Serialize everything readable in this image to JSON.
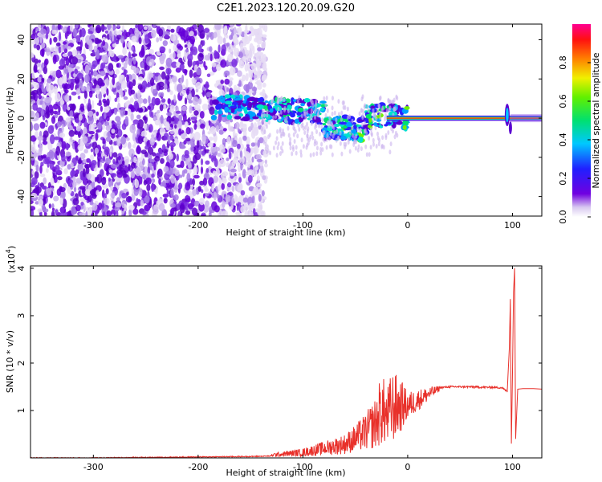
{
  "figure": {
    "title": "C2E1.2023.120.20.09.G20"
  },
  "colors": {
    "spectrum_purple": "#6a00e0",
    "snr_line": "#e8302a",
    "axis": "#000000"
  },
  "chart_data": [
    {
      "type": "heatmap",
      "name": "spectrogram",
      "xlabel": "Height of straight line (km)",
      "ylabel": "Frequency (Hz)",
      "xlim": [
        -360,
        128
      ],
      "ylim": [
        -50,
        48
      ],
      "xticks": [
        -300,
        -200,
        -100,
        0,
        100
      ],
      "xtick_labels": [
        "-300",
        "-200",
        "-100",
        "0",
        "100"
      ],
      "yticks": [
        -40,
        -20,
        0,
        20,
        40
      ],
      "ytick_labels": [
        "-40",
        "-20",
        "0",
        "20",
        "40"
      ],
      "colorbar": {
        "label": "Normalized spectral amplitude",
        "range": [
          0,
          1
        ],
        "ticks": [
          0.0,
          0.2,
          0.4,
          0.6,
          0.8
        ],
        "tick_labels": [
          "0.0",
          "0.2",
          "0.4",
          "0.6",
          "0.8"
        ],
        "colormap": "rainbow (purple-blue-cyan-green-yellow-red-magenta)"
      },
      "features": {
        "noise_region_x": [
          -360,
          -145
        ],
        "carrier_line_frequency": 0,
        "carrier_line_x": [
          0,
          128
        ],
        "spike_x": 95
      }
    },
    {
      "type": "line",
      "name": "snr",
      "xlabel": "Height of straight line (km)",
      "ylabel": "SNR (10 * v/v)",
      "y_multiplier_label": "(x10",
      "y_multiplier_exp": "4",
      "y_multiplier_close": ")",
      "xlim": [
        -360,
        128
      ],
      "ylim": [
        0,
        4.05
      ],
      "xticks": [
        -300,
        -200,
        -100,
        0,
        100
      ],
      "xtick_labels": [
        "-300",
        "-200",
        "-100",
        "0",
        "100"
      ],
      "yticks": [
        1,
        2,
        3,
        4
      ],
      "ytick_labels": [
        "1",
        "2",
        "3",
        "4"
      ],
      "series": [
        {
          "x": [
            -360,
            -300,
            -250,
            -200,
            -150,
            -130,
            -110,
            -100,
            -90,
            -80,
            -70,
            -60,
            -50,
            -40,
            -30,
            -20,
            -10,
            0,
            10,
            20,
            30,
            40,
            50,
            60,
            70,
            80,
            90,
            95,
            97,
            98,
            99,
            100,
            101,
            102,
            103,
            105,
            110,
            120,
            128
          ],
          "y": [
            0.0,
            0.0,
            0.01,
            0.02,
            0.03,
            0.04,
            0.06,
            0.09,
            0.12,
            0.16,
            0.22,
            0.3,
            0.38,
            0.5,
            0.62,
            0.8,
            0.95,
            1.1,
            1.25,
            1.38,
            1.48,
            1.5,
            1.5,
            1.5,
            1.49,
            1.49,
            1.48,
            1.4,
            2.3,
            3.35,
            0.3,
            1.8,
            3.5,
            4.0,
            0.4,
            1.45,
            1.46,
            1.46,
            1.45
          ],
          "noise_envelope": {
            "x": [
              -130,
              -100,
              -80,
              -60,
              -50,
              -40,
              -30,
              -25,
              -20,
              -15,
              -10,
              -5,
              0,
              10,
              20,
              30
            ],
            "lo": [
              0.02,
              0.03,
              0.05,
              0.08,
              0.12,
              0.15,
              0.2,
              0.25,
              0.25,
              0.3,
              0.4,
              0.6,
              0.8,
              1.0,
              1.2,
              1.4
            ],
            "hi": [
              0.1,
              0.2,
              0.35,
              0.5,
              0.7,
              0.95,
              1.3,
              1.85,
              1.45,
              1.85,
              1.75,
              1.6,
              1.4,
              1.45,
              1.5,
              1.52
            ]
          }
        }
      ]
    }
  ]
}
